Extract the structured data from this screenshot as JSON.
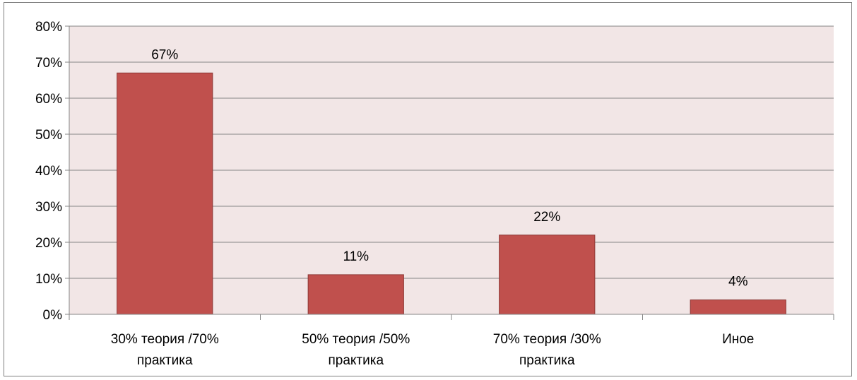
{
  "chart_data": {
    "type": "bar",
    "categories": [
      [
        "30% теория /70%",
        "практика"
      ],
      [
        "50% теория /50%",
        "практика"
      ],
      [
        "70% теория /30%",
        "практика"
      ],
      [
        "Иное"
      ]
    ],
    "values": [
      67,
      11,
      22,
      4
    ],
    "data_labels": [
      "67%",
      "11%",
      "22%",
      "4%"
    ],
    "y_ticks": [
      "0%",
      "10%",
      "20%",
      "30%",
      "40%",
      "50%",
      "60%",
      "70%",
      "80%"
    ],
    "ylim": [
      0,
      80
    ],
    "y_unit": "%",
    "grid": true,
    "legend": "none",
    "title": "",
    "xlabel": "",
    "ylabel": "",
    "colors": {
      "bar_fill": "#c0504d",
      "bar_stroke": "#8c3836",
      "plot_background": "#f2e6e6",
      "gridline": "#868686",
      "axis": "#868686"
    }
  }
}
